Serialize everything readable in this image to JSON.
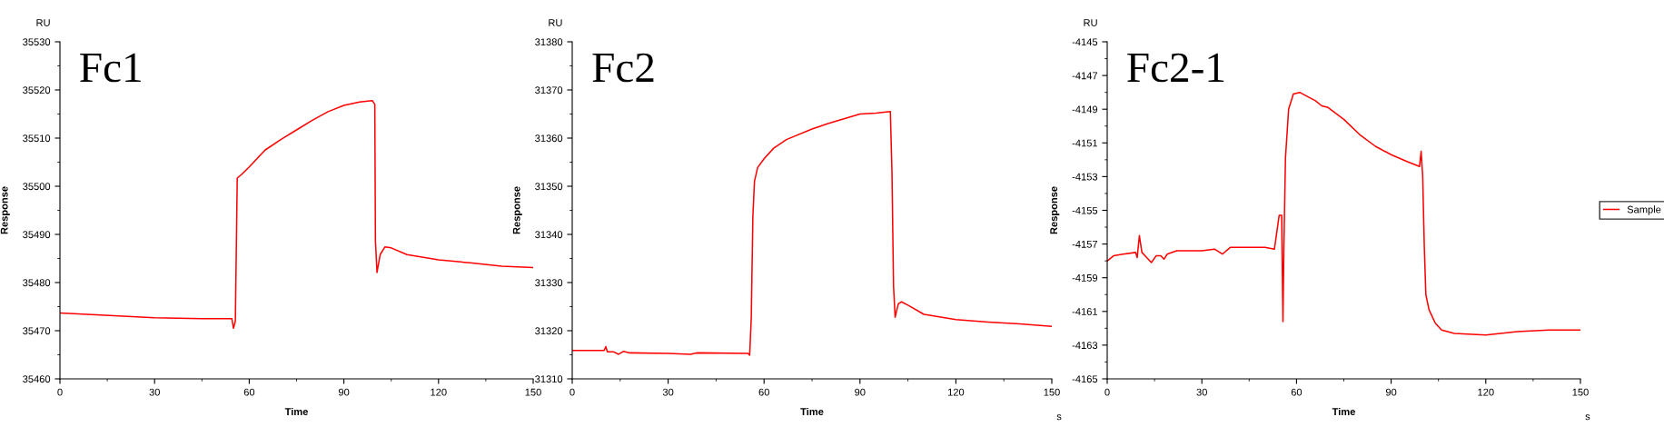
{
  "chart_data": [
    {
      "type": "line",
      "title": "Fc1",
      "xlabel": "Time",
      "ylabel": "Response",
      "annotations": [
        "RU"
      ],
      "grid": false,
      "legend": false,
      "marker": "none",
      "line_style": "solid",
      "xlim": [
        0,
        150
      ],
      "xticks": [
        0,
        30,
        60,
        90,
        120,
        150
      ],
      "ylim": [
        35460,
        35530
      ],
      "yticks": [
        35460,
        35470,
        35480,
        35490,
        35500,
        35510,
        35520,
        35530
      ],
      "series": [
        {
          "color": "#ff0000",
          "x": [
            0,
            30,
            45,
            54.5,
            55,
            55.6,
            56.2,
            57.5,
            60,
            65,
            70,
            75,
            80,
            85,
            90,
            95,
            99,
            99.8,
            100,
            100.5,
            101.5,
            103,
            105,
            110,
            120,
            130,
            140,
            150
          ],
          "values": [
            35473.7,
            35472.7,
            35472.5,
            35472.5,
            35470.5,
            35472,
            35501.7,
            35502.4,
            35504.0,
            35507.5,
            35509.7,
            35511.7,
            35513.7,
            35515.5,
            35516.8,
            35517.5,
            35517.8,
            35517,
            35488.7,
            35482.1,
            35485.8,
            35487.4,
            35487.2,
            35485.8,
            35484.7,
            35484.1,
            35483.4,
            35483.1
          ]
        }
      ]
    },
    {
      "type": "line",
      "title": "Fc2",
      "xlabel": "Time",
      "ylabel": "Response",
      "annotations": [
        "RU",
        "s"
      ],
      "grid": false,
      "legend": false,
      "marker": "none",
      "line_style": "solid",
      "xlim": [
        0,
        150
      ],
      "xticks": [
        0,
        30,
        60,
        90,
        120,
        150
      ],
      "ylim": [
        31310,
        31380
      ],
      "yticks": [
        31310,
        31320,
        31330,
        31340,
        31350,
        31360,
        31370,
        31380
      ],
      "series": [
        {
          "color": "#ff0000",
          "x": [
            0,
            10,
            10.5,
            11,
            13,
            14.5,
            16,
            18,
            30,
            37,
            39,
            55,
            55.5,
            56,
            56.5,
            57,
            58,
            60,
            63,
            67,
            75,
            80,
            85,
            90,
            95,
            99.5,
            100,
            100.5,
            101,
            102,
            103,
            105,
            110,
            120,
            130,
            140,
            150
          ],
          "values": [
            31315.9,
            31315.9,
            31316.7,
            31315.6,
            31315.6,
            31315.1,
            31315.7,
            31315.4,
            31315.3,
            31315.1,
            31315.4,
            31315.3,
            31314.9,
            31322.7,
            31343.7,
            31351.0,
            31353.9,
            31355.7,
            31357.9,
            31359.7,
            31361.9,
            31363.0,
            31364.0,
            31365.0,
            31365.2,
            31365.5,
            31353.2,
            31329.2,
            31322.8,
            31325.6,
            31326.0,
            31325.3,
            31323.4,
            31322.3,
            31321.8,
            31321.4,
            31320.9
          ]
        }
      ]
    },
    {
      "type": "line",
      "title": "Fc2-1",
      "xlabel": "Time",
      "ylabel": "Response",
      "annotations": [
        "RU",
        "s"
      ],
      "grid": false,
      "legend": "right",
      "marker": "none",
      "line_style": "solid",
      "xlim": [
        0,
        150
      ],
      "xticks": [
        0,
        30,
        60,
        90,
        120,
        150
      ],
      "ylim": [
        -4165,
        -4145
      ],
      "yticks": [
        -4165,
        -4163,
        -4161,
        -4159,
        -4157,
        -4155,
        -4153,
        -4151,
        -4149,
        -4147,
        -4145
      ],
      "series": [
        {
          "name": "Sample",
          "color": "#ff0000",
          "x": [
            0,
            2,
            5,
            9,
            9.5,
            10.2,
            11,
            12,
            14,
            15.5,
            17,
            18,
            19,
            22,
            30,
            34,
            36.5,
            39,
            42,
            50,
            53,
            54.5,
            55.3,
            55.7,
            56,
            56.5,
            57.5,
            59,
            61,
            63,
            66,
            68,
            70,
            75,
            80,
            85,
            90,
            95,
            99,
            99.5,
            100,
            100.5,
            101,
            102,
            104,
            106,
            110,
            120,
            130,
            140,
            150
          ],
          "values": [
            -4158.0,
            -4157.7,
            -4157.6,
            -4157.5,
            -4157.8,
            -4156.5,
            -4157.5,
            -4157.7,
            -4158.1,
            -4157.7,
            -4157.7,
            -4157.9,
            -4157.6,
            -4157.4,
            -4157.4,
            -4157.3,
            -4157.6,
            -4157.2,
            -4157.2,
            -4157.2,
            -4157.3,
            -4155.3,
            -4155.3,
            -4161.6,
            -4157.2,
            -4151.9,
            -4149.0,
            -4148.1,
            -4148.0,
            -4148.2,
            -4148.5,
            -4148.8,
            -4148.9,
            -4149.6,
            -4150.5,
            -4151.2,
            -4151.7,
            -4152.1,
            -4152.4,
            -4151.5,
            -4153.0,
            -4157.1,
            -4160.0,
            -4160.9,
            -4161.7,
            -4162.1,
            -4162.3,
            -4162.4,
            -4162.2,
            -4162.1,
            -4162.1
          ]
        }
      ]
    }
  ]
}
